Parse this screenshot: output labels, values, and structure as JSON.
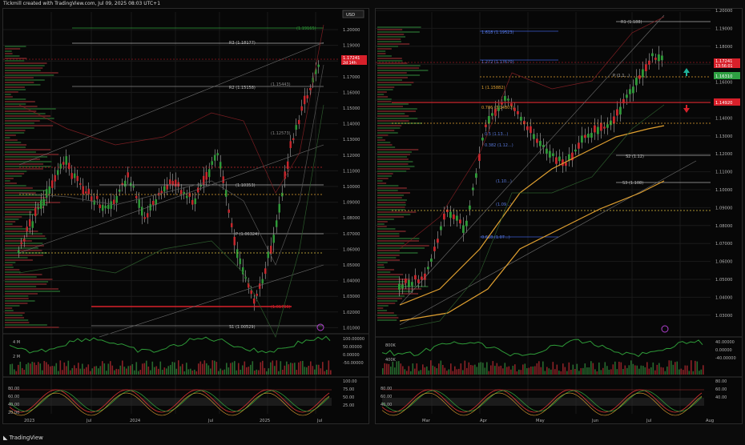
{
  "header": {
    "caption": "Tickmill created with TradingView.com, Jul 09, 2025 08:03 UTC+1"
  },
  "footer": {
    "brand": "TradingView"
  },
  "colors": {
    "green": "#2e9a38",
    "red": "#c8262c",
    "grid": "#1a1a1a",
    "axis_text": "#b0b0b0",
    "teal_arrow": "#1fb39b",
    "orange": "#e0a030",
    "current_price_bg": "#d7202a",
    "level_green_bg": "#2ea043"
  },
  "left": {
    "currency": "USD",
    "price_ticks": [
      "1.20000",
      "1.19000",
      "1.18000",
      "1.17000",
      "1.16000",
      "1.15000",
      "1.14000",
      "1.13000",
      "1.12000",
      "1.11000",
      "1.10000",
      "1.09000",
      "1.08000",
      "1.07000",
      "1.06000",
      "1.05000",
      "1.04000",
      "1.03000",
      "1.02000",
      "1.01000"
    ],
    "current_price": "1.17241",
    "countdown": "2d 14h",
    "level_labels": [
      "(1.19165)",
      "R3 (1.18177)",
      "R2 (1.15158)",
      "(1.15443)",
      "(1.12573)",
      "(1.10353)",
      "P (1.06324)",
      "(1.01766)",
      "S1 (1.00529)"
    ],
    "osc1_ticks": [
      "100.00000",
      "50.00000",
      "0.00000",
      "-50.00000"
    ],
    "osc1_left_ticks": [
      "4 M",
      "2 M"
    ],
    "osc2_ticks": [
      "100.00",
      "75.00",
      "50.00",
      "25.00"
    ],
    "osc2_left_ticks": [
      "80.00",
      "60.00",
      "40.00",
      "20.00"
    ],
    "time_labels": [
      "2023",
      "Jul",
      "2024",
      "Jul",
      "2025",
      "Jul"
    ]
  },
  "right": {
    "price_ticks": [
      "1.20000",
      "1.19000",
      "1.18000",
      "1.17000",
      "1.16000",
      "1.15000",
      "1.14000",
      "1.13000",
      "1.12000",
      "1.11000",
      "1.10000",
      "1.09000",
      "1.08000",
      "1.07000",
      "1.06000",
      "1.05000",
      "1.04000",
      "1.03000"
    ],
    "current_price": "1.17241",
    "countdown": "13:56:01",
    "green_level": "1.16310",
    "red_level": "1.14920",
    "level_labels": [
      "R1 (1.188)",
      "1.618 (1.19523)",
      "1.272 (1.17670)",
      "1 (1.15882)",
      "0.786 (1.14807)",
      "0.5 (1.13...)",
      "0.382 (1.12...)",
      "(1.10...)",
      "(1.09...)",
      "0.618 (1.07...)",
      "P (1.1...)",
      "S2 (1.12)",
      "S3 (1.108)"
    ],
    "osc1_ticks": [
      "40.00000",
      "0.00000",
      "-40.00000"
    ],
    "osc1_left_ticks": [
      "800K",
      "400K"
    ],
    "osc2_ticks": [
      "80.00",
      "60.00",
      "40.00"
    ],
    "osc2_left_ticks": [
      "80.00",
      "60.00",
      "40.00"
    ],
    "time_labels": [
      "Mar",
      "Apr",
      "May",
      "Jun",
      "Jul",
      "Aug"
    ]
  }
}
